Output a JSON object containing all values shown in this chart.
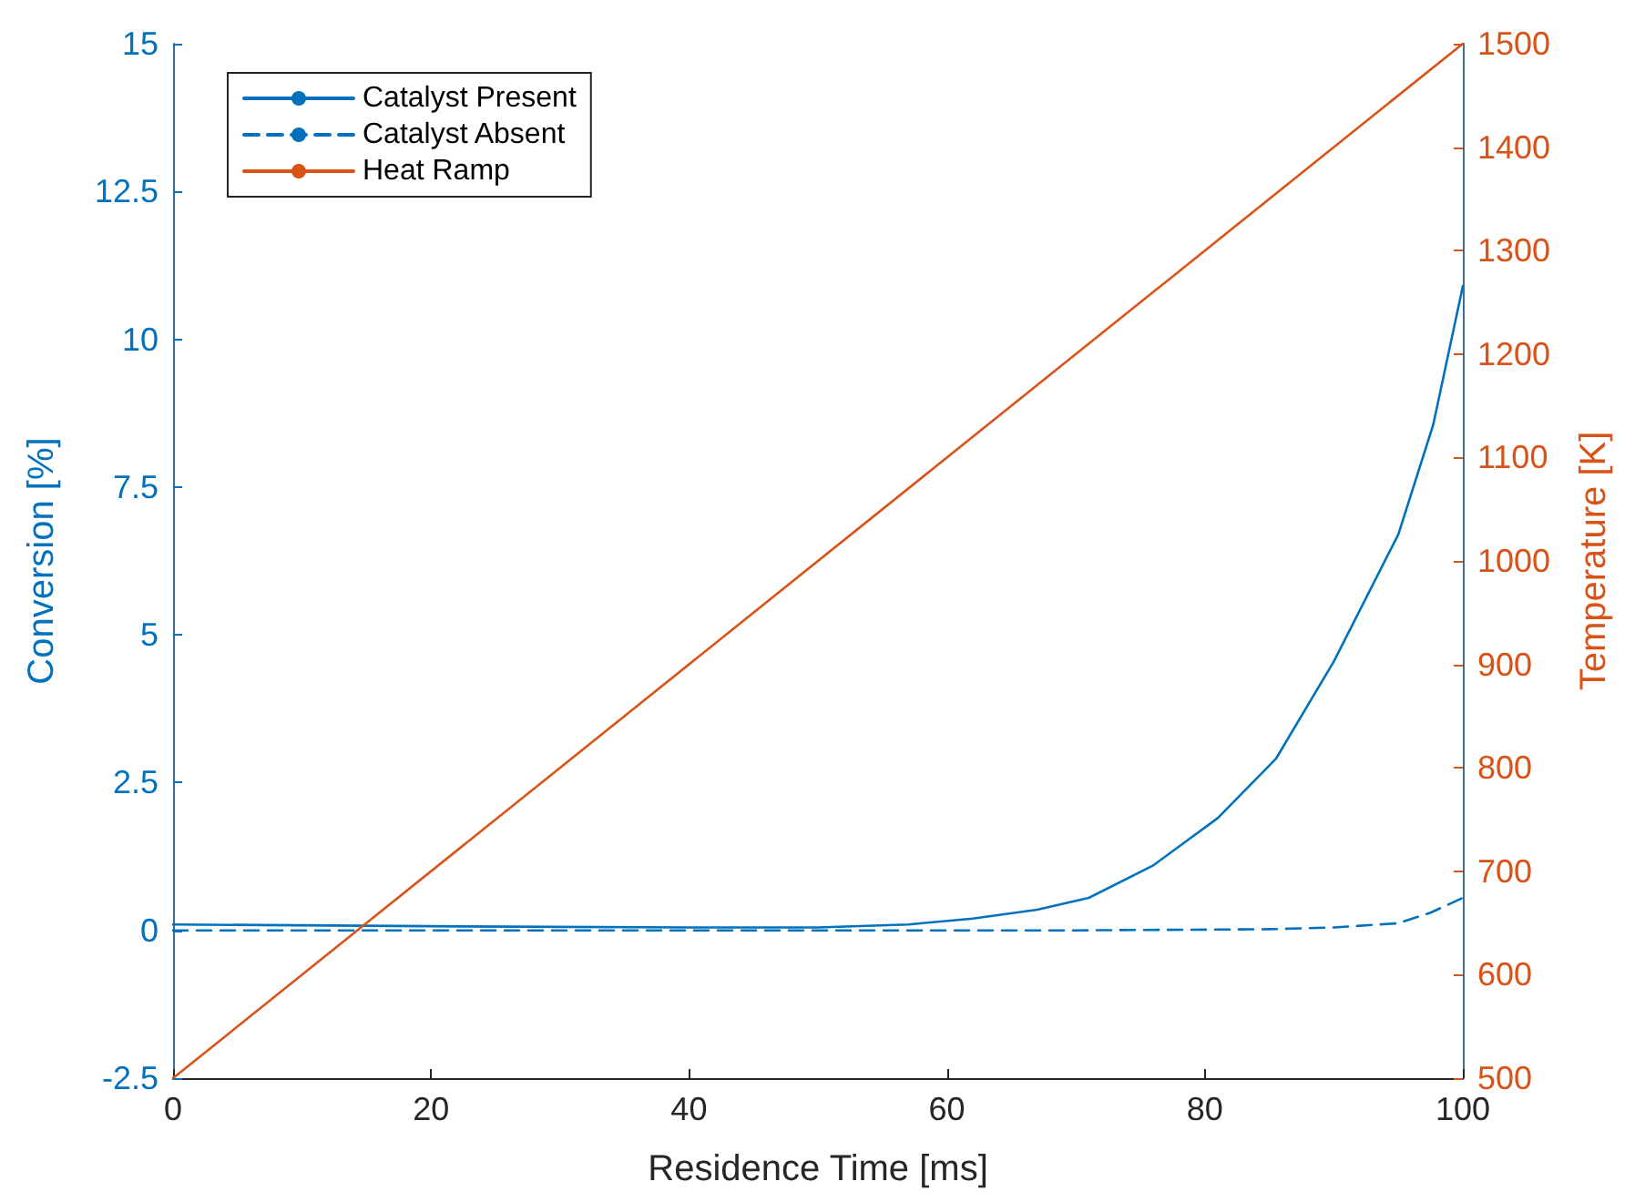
{
  "chart_data": {
    "type": "line",
    "xlabel": "Residence Time [ms]",
    "ylabel": "Conversion [%]",
    "y2label": "Temperature [K]",
    "xlim": [
      0,
      100
    ],
    "xticks": [
      0,
      20,
      40,
      60,
      80,
      100
    ],
    "ylim": [
      -2.5,
      15
    ],
    "yticks": [
      -2.5,
      0,
      2.5,
      5,
      7.5,
      10,
      12.5,
      15
    ],
    "y2lim": [
      500,
      1500
    ],
    "y2ticks": [
      500,
      600,
      700,
      800,
      900,
      1000,
      1100,
      1200,
      1300,
      1400,
      1500
    ],
    "grid": false,
    "legend": "top left",
    "marker": "none",
    "series": [
      {
        "name": "Catalyst Present",
        "color": "#0072bd",
        "line_style": "solid",
        "x": [
          0,
          20,
          40,
          50,
          57,
          62,
          67,
          71,
          76,
          81,
          85.5,
          90,
          95,
          97.7,
          100
        ],
        "values": [
          0.1,
          0.07,
          0.05,
          0.05,
          0.1,
          0.2,
          0.35,
          0.55,
          1.1,
          1.9,
          2.9,
          4.55,
          6.7,
          8.55,
          10.9
        ]
      },
      {
        "name": "Catalyst Absent",
        "color": "#0072bd",
        "line_style": "dashed",
        "x": [
          0,
          40,
          70,
          85,
          90,
          95,
          97.5,
          100
        ],
        "values": [
          0,
          0,
          0,
          0.02,
          0.05,
          0.12,
          0.3,
          0.55
        ]
      },
      {
        "name": "Heat Ramp",
        "color": "#d95319",
        "line_style": "solid",
        "axis": "y2",
        "x": [
          0,
          100
        ],
        "values": [
          500,
          1500
        ]
      }
    ]
  }
}
